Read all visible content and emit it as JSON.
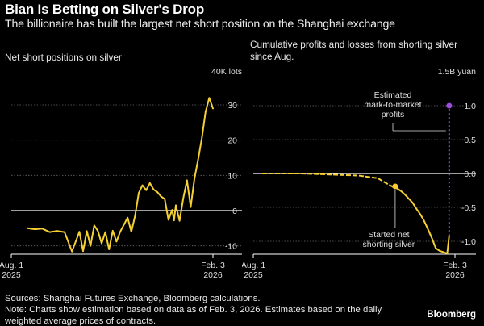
{
  "title": "Bian Is Betting on Silver's Drop",
  "subtitle": "The billionaire has built the largest net short position on the Shanghai exchange",
  "footer": {
    "sources": "Sources: Shanghai Futures Exchange, Bloomberg calculations.",
    "note": "Note: Charts show estimation based on data as of Feb. 3, 2026. Estimates based on the daily",
    "note2": "weighted average prices of contracts.",
    "brand": "Bloomberg"
  },
  "colors": {
    "line": "#f5d033",
    "estimate": "#9b4ddb",
    "axis": "#ffffff",
    "grid": "#666666",
    "background": "#000000"
  },
  "chart_data": [
    {
      "type": "line",
      "title": "Net short positions on silver",
      "unit": "40K lots",
      "ylim": [
        -12,
        32
      ],
      "yticks": [
        30,
        20,
        10,
        0,
        -10
      ],
      "ytick_labels": [
        "30",
        "20",
        "10",
        "0",
        "-10"
      ],
      "xlabels": [
        {
          "line1": "Aug. 1",
          "line2": "2025"
        },
        {
          "line1": "Feb. 3",
          "line2": "2026"
        }
      ],
      "series": [
        {
          "name": "Net short position",
          "x": [
            0,
            4,
            8,
            12,
            16,
            20,
            24,
            28,
            30,
            32,
            34,
            36,
            38,
            40,
            42,
            44,
            46,
            48,
            50,
            52,
            54,
            56,
            58,
            60,
            62,
            64,
            66,
            68,
            70,
            72,
            74,
            76,
            78,
            79,
            80,
            82,
            84,
            86,
            88,
            90,
            92,
            94,
            96,
            98,
            100
          ],
          "values": [
            -5.0,
            -5.3,
            -5.1,
            -6.1,
            -5.8,
            -6.1,
            -11.6,
            -6.0,
            -11.5,
            -5.8,
            -10.0,
            -4.2,
            -5.8,
            -9.3,
            -6.1,
            -11.0,
            -5.7,
            -8.8,
            -6.0,
            -4.0,
            -2.0,
            -6.0,
            -1.5,
            5.0,
            7.2,
            5.8,
            7.8,
            6.0,
            5.3,
            4.0,
            3.3,
            -2.6,
            0.2,
            -2.8,
            1.5,
            -2.9,
            3.5,
            8.6,
            1.0,
            9.0,
            14.5,
            20.5,
            28.0,
            32.0,
            29.0
          ]
        }
      ]
    },
    {
      "type": "line",
      "title": "Cumulative profits and losses from shorting silver since Aug.",
      "unit": "1.5B yuan",
      "ylim": [
        -1.25,
        1.15
      ],
      "yticks": [
        1.0,
        0.5,
        0.0,
        -0.5,
        -1.0
      ],
      "ytick_labels": [
        "1.0",
        "0.5",
        "0.0",
        "-0.5",
        "-1.0"
      ],
      "xlabels": [
        {
          "line1": "Aug. 1",
          "line2": "2025"
        },
        {
          "line1": "Feb. 3",
          "line2": "2026"
        }
      ],
      "annotations": {
        "estimate_lines": [
          "Estimated",
          "mark-to-market",
          "profits"
        ],
        "start_lines": [
          "Started net",
          "shorting silver"
        ]
      },
      "series": [
        {
          "name": "Cumulative P&L",
          "x": [
            0,
            10,
            20,
            30,
            40,
            50,
            55,
            60,
            63,
            66,
            68,
            70,
            72,
            74,
            76,
            78,
            80,
            82,
            84,
            86,
            88,
            90,
            92,
            94,
            96,
            97
          ],
          "values": [
            0.0,
            0.0,
            0.0,
            -0.01,
            -0.02,
            -0.03,
            -0.05,
            -0.07,
            -0.12,
            -0.17,
            -0.2,
            -0.22,
            -0.26,
            -0.31,
            -0.37,
            -0.43,
            -0.52,
            -0.6,
            -0.7,
            -0.82,
            -0.95,
            -1.1,
            -1.14,
            -1.16,
            -1.18,
            -0.92
          ]
        }
      ],
      "start_marker": {
        "x": 69,
        "value": -0.19
      },
      "estimate_point": {
        "x": 97,
        "value": 1.0
      }
    }
  ]
}
